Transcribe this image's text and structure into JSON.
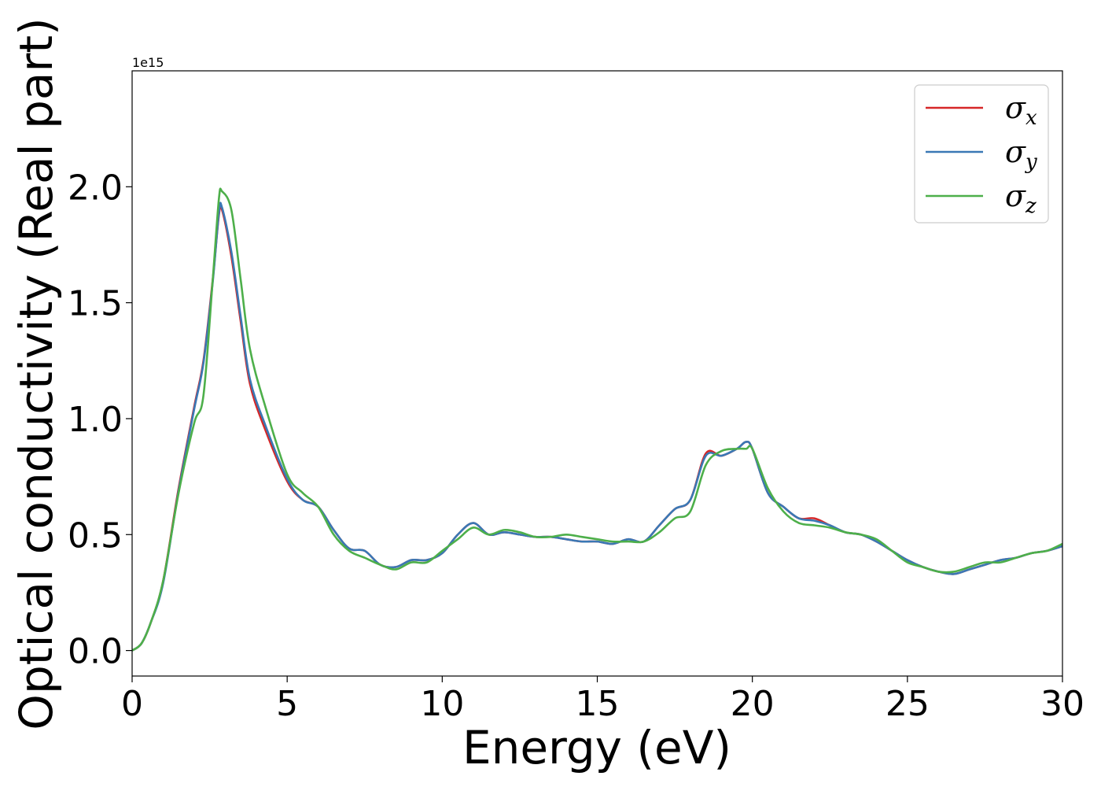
{
  "chart_data": {
    "type": "line",
    "xlabel": "Energy (eV)",
    "ylabel": "Optical conductivity (Real part)",
    "y_offset_label": "1e15",
    "xlim": [
      0,
      30
    ],
    "ylim": [
      -0.11,
      2.5
    ],
    "xticks": [
      0,
      5,
      10,
      15,
      20,
      25,
      30
    ],
    "xtick_labels": [
      "0",
      "5",
      "10",
      "15",
      "20",
      "25",
      "30"
    ],
    "yticks": [
      0.0,
      0.5,
      1.0,
      1.5,
      2.0
    ],
    "ytick_labels": [
      "0.0",
      "0.5",
      "1.0",
      "1.5",
      "2.0"
    ],
    "grid": false,
    "legend_position": "top-right",
    "x": [
      0,
      0.3,
      0.6,
      1.0,
      1.5,
      2.0,
      2.3,
      2.6,
      2.8,
      2.9,
      3.2,
      3.5,
      3.8,
      4.3,
      5.0,
      5.5,
      6.0,
      6.5,
      7.0,
      7.5,
      8.0,
      8.5,
      9.0,
      9.5,
      10.0,
      10.5,
      11.0,
      11.5,
      12.0,
      12.5,
      13.0,
      13.5,
      14.0,
      14.5,
      15.0,
      15.5,
      16.0,
      16.5,
      17.0,
      17.5,
      18.0,
      18.5,
      19.0,
      19.5,
      19.8,
      20.0,
      20.5,
      21.0,
      21.5,
      22.0,
      22.5,
      23.0,
      23.5,
      24.0,
      24.5,
      25.0,
      25.5,
      26.0,
      26.5,
      27.0,
      27.5,
      28.0,
      28.5,
      29.0,
      29.5,
      30.0
    ],
    "series": [
      {
        "name": "σx",
        "color": "#d62728",
        "values": [
          0.0,
          0.03,
          0.12,
          0.3,
          0.7,
          1.05,
          1.25,
          1.6,
          1.88,
          1.9,
          1.7,
          1.42,
          1.15,
          0.95,
          0.73,
          0.65,
          0.62,
          0.52,
          0.44,
          0.43,
          0.37,
          0.36,
          0.39,
          0.39,
          0.42,
          0.5,
          0.55,
          0.5,
          0.51,
          0.5,
          0.49,
          0.49,
          0.48,
          0.47,
          0.47,
          0.46,
          0.48,
          0.47,
          0.54,
          0.61,
          0.65,
          0.85,
          0.84,
          0.87,
          0.9,
          0.87,
          0.68,
          0.62,
          0.57,
          0.57,
          0.54,
          0.51,
          0.5,
          0.47,
          0.43,
          0.39,
          0.36,
          0.34,
          0.33,
          0.35,
          0.37,
          0.39,
          0.4,
          0.42,
          0.43,
          0.45
        ]
      },
      {
        "name": "σy",
        "color": "#3a78b5",
        "values": [
          0.0,
          0.03,
          0.12,
          0.29,
          0.69,
          1.04,
          1.24,
          1.59,
          1.89,
          1.91,
          1.72,
          1.44,
          1.17,
          0.97,
          0.74,
          0.65,
          0.62,
          0.52,
          0.44,
          0.43,
          0.37,
          0.36,
          0.39,
          0.39,
          0.42,
          0.5,
          0.55,
          0.5,
          0.51,
          0.5,
          0.49,
          0.49,
          0.48,
          0.47,
          0.47,
          0.46,
          0.48,
          0.47,
          0.54,
          0.61,
          0.65,
          0.84,
          0.84,
          0.87,
          0.9,
          0.87,
          0.68,
          0.62,
          0.57,
          0.56,
          0.54,
          0.51,
          0.5,
          0.47,
          0.43,
          0.39,
          0.36,
          0.34,
          0.33,
          0.35,
          0.37,
          0.39,
          0.4,
          0.42,
          0.43,
          0.45
        ]
      },
      {
        "name": "σz",
        "color": "#4daf4a",
        "values": [
          0.0,
          0.03,
          0.12,
          0.3,
          0.68,
          0.98,
          1.1,
          1.6,
          1.95,
          1.98,
          1.9,
          1.6,
          1.3,
          1.05,
          0.76,
          0.68,
          0.62,
          0.5,
          0.43,
          0.4,
          0.37,
          0.35,
          0.38,
          0.38,
          0.43,
          0.48,
          0.53,
          0.5,
          0.52,
          0.51,
          0.49,
          0.49,
          0.5,
          0.49,
          0.48,
          0.47,
          0.47,
          0.47,
          0.51,
          0.57,
          0.6,
          0.8,
          0.86,
          0.87,
          0.87,
          0.87,
          0.7,
          0.6,
          0.55,
          0.54,
          0.53,
          0.51,
          0.5,
          0.48,
          0.43,
          0.38,
          0.36,
          0.34,
          0.34,
          0.36,
          0.38,
          0.38,
          0.4,
          0.42,
          0.43,
          0.46
        ]
      }
    ]
  }
}
